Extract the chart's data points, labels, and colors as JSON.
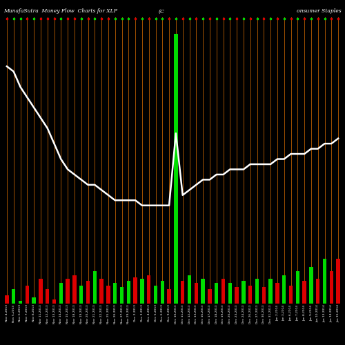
{
  "title_left": "MunafaSutra  Money Flow  Charts for XLP",
  "title_mid": "(C",
  "title_right": "onsumer Staples",
  "background_color": "#000000",
  "bar_width": 0.55,
  "line_color": "#ffffff",
  "orange_color": "#b35a00",
  "categories": [
    "Nov 4,2013",
    "Nov 5,2013",
    "Nov 6,2013",
    "Nov 7,2013",
    "Nov 8,2013",
    "Nov 11,2013",
    "Nov 12,2013",
    "Nov 13,2013",
    "Nov 14,2013",
    "Nov 15,2013",
    "Nov 18,2013",
    "Nov 19,2013",
    "Nov 20,2013",
    "Nov 21,2013",
    "Nov 22,2013",
    "Nov 25,2013",
    "Nov 26,2013",
    "Nov 27,2013",
    "Nov 29,2013",
    "Dec 2,2013",
    "Dec 3,2013",
    "Dec 4,2013",
    "Dec 5,2013",
    "Dec 6,2013",
    "Dec 9,2013",
    "Dec 10,2013",
    "Dec 11,2013",
    "Dec 12,2013",
    "Dec 13,2013",
    "Dec 16,2013",
    "Dec 17,2013",
    "Dec 18,2013",
    "Dec 19,2013",
    "Dec 20,2013",
    "Dec 23,2013",
    "Dec 24,2013",
    "Dec 26,2013",
    "Dec 27,2013",
    "Dec 30,2013",
    "Dec 31,2013",
    "Jan 2,2014",
    "Jan 3,2014",
    "Jan 6,2014",
    "Jan 7,2014",
    "Jan 8,2014",
    "Jan 9,2014",
    "Jan 10,2014",
    "Jan 13,2014",
    "Jan 14,2014",
    "Jan 15,2014"
  ],
  "bar_values": [
    10,
    18,
    3,
    22,
    8,
    30,
    18,
    5,
    25,
    30,
    35,
    22,
    28,
    40,
    30,
    22,
    25,
    20,
    28,
    32,
    30,
    35,
    22,
    28,
    18,
    330,
    28,
    35,
    25,
    30,
    18,
    25,
    30,
    25,
    20,
    28,
    22,
    30,
    20,
    30,
    25,
    35,
    22,
    40,
    28,
    45,
    30,
    55,
    40,
    55
  ],
  "bar_colors": [
    "red",
    "green",
    "green",
    "red",
    "green",
    "red",
    "red",
    "red",
    "green",
    "red",
    "red",
    "green",
    "red",
    "green",
    "red",
    "red",
    "green",
    "green",
    "green",
    "red",
    "green",
    "red",
    "green",
    "green",
    "red",
    "green",
    "red",
    "green",
    "red",
    "green",
    "red",
    "green",
    "red",
    "green",
    "red",
    "green",
    "red",
    "green",
    "red",
    "green",
    "red",
    "green",
    "red",
    "green",
    "red",
    "green",
    "red",
    "green",
    "red",
    "red"
  ],
  "line_values": [
    0.88,
    0.87,
    0.84,
    0.82,
    0.8,
    0.78,
    0.76,
    0.73,
    0.7,
    0.68,
    0.67,
    0.66,
    0.65,
    0.65,
    0.64,
    0.63,
    0.62,
    0.62,
    0.62,
    0.62,
    0.61,
    0.61,
    0.61,
    0.61,
    0.61,
    0.75,
    0.63,
    0.64,
    0.65,
    0.66,
    0.66,
    0.67,
    0.67,
    0.68,
    0.68,
    0.68,
    0.69,
    0.69,
    0.69,
    0.69,
    0.7,
    0.7,
    0.71,
    0.71,
    0.71,
    0.72,
    0.72,
    0.73,
    0.73,
    0.74
  ]
}
